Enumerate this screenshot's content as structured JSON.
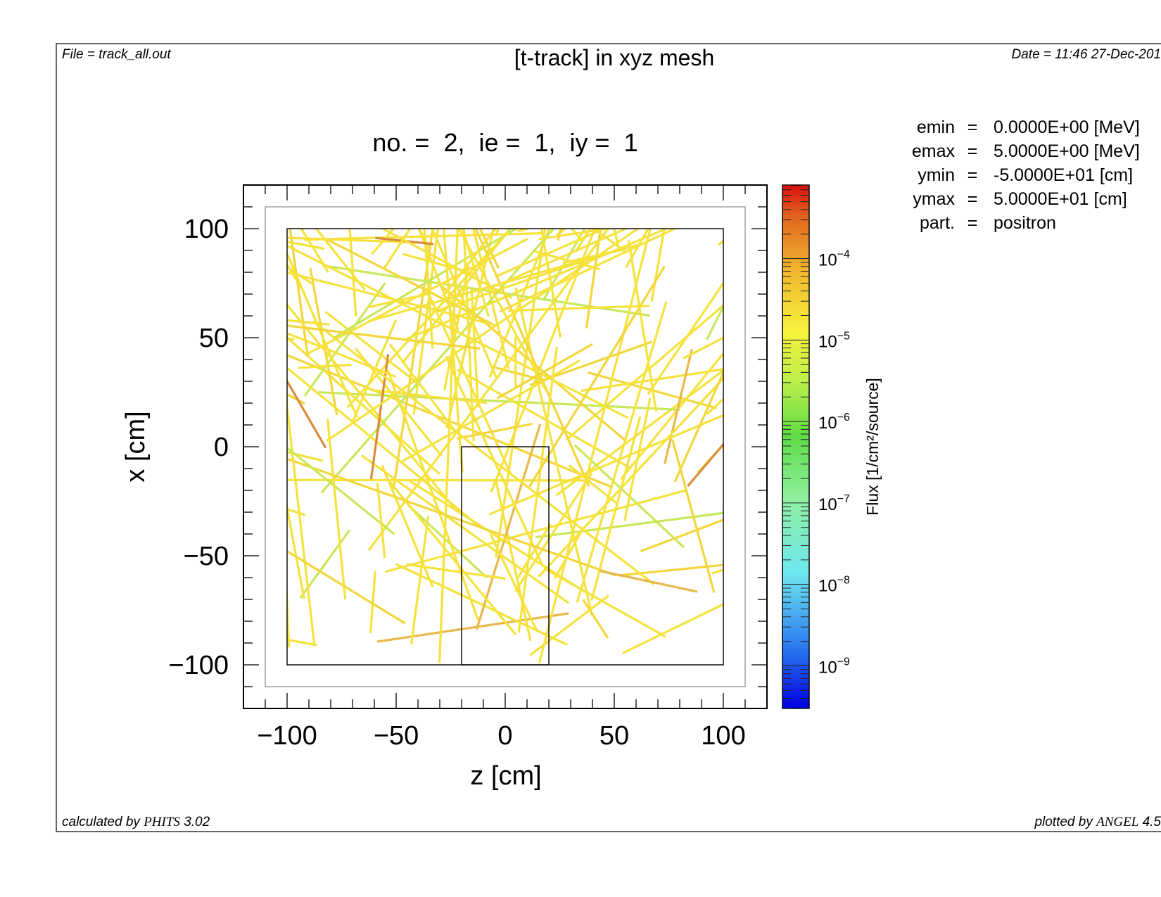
{
  "header": {
    "file": "File = track_all.out",
    "title": "[t-track] in xyz mesh",
    "date": "Date = 11:46 27-Dec-201"
  },
  "footer": {
    "calc_prefix": "calculated by ",
    "calc_code": "PHITS",
    "calc_version": " 3.02",
    "plot_prefix": "plotted by ",
    "plot_code": "ANGEL",
    "plot_version": " 4.5"
  },
  "info": [
    {
      "label": "emin",
      "eq": "=",
      "value": "0.0000E+00 [MeV]"
    },
    {
      "label": "emax",
      "eq": "=",
      "value": "5.0000E+00 [MeV]"
    },
    {
      "label": "ymin",
      "eq": "=",
      "value": "-5.0000E+01 [cm]"
    },
    {
      "label": "ymax",
      "eq": "=",
      "value": "5.0000E+01 [cm]"
    },
    {
      "label": "part.",
      "eq": "=",
      "value": "positron"
    }
  ],
  "chart_data": {
    "type": "heatmap",
    "subtitle": "no. =  2,  ie =  1,  iy =  1",
    "xlabel": "z [cm]",
    "ylabel": "x [cm]",
    "xlim": [
      -120,
      120
    ],
    "ylim": [
      -120,
      120
    ],
    "xticks": [
      -100,
      -50,
      0,
      50,
      100
    ],
    "yticks": [
      100,
      50,
      0,
      -50,
      -100
    ],
    "xtick_labels": [
      "−100",
      "−50",
      "0",
      "50",
      "100"
    ],
    "ytick_labels": [
      "100",
      "50",
      "0",
      "−50",
      "−100"
    ],
    "colorbar": {
      "label": "Flux [1/cm²/source]",
      "scale": "log",
      "range": [
        3e-10,
        0.0008
      ],
      "ticks": [
        {
          "value": 0.0001,
          "base": "10",
          "exp": "−4"
        },
        {
          "value": 1e-05,
          "base": "10",
          "exp": "−5"
        },
        {
          "value": 1e-06,
          "base": "10",
          "exp": "−6"
        },
        {
          "value": 1e-07,
          "base": "10",
          "exp": "−7"
        },
        {
          "value": 1e-08,
          "base": "10",
          "exp": "−8"
        },
        {
          "value": 1e-09,
          "base": "10",
          "exp": "−9"
        }
      ]
    },
    "geometry": [
      {
        "name": "outer-region",
        "z": [
          -110,
          110
        ],
        "x": [
          -110,
          110
        ],
        "color": "#999999"
      },
      {
        "name": "mesh-region",
        "z": [
          -100,
          100
        ],
        "x": [
          -100,
          100
        ],
        "color": "#000000"
      },
      {
        "name": "inner-block",
        "z": [
          -20,
          20
        ],
        "x": [
          -100,
          0
        ],
        "color": "#000000"
      }
    ],
    "track_colors": [
      "#f5e23c",
      "#f2d63a",
      "#e9b84a",
      "#d98c3a",
      "#c8e85a"
    ],
    "track_count": 170
  }
}
